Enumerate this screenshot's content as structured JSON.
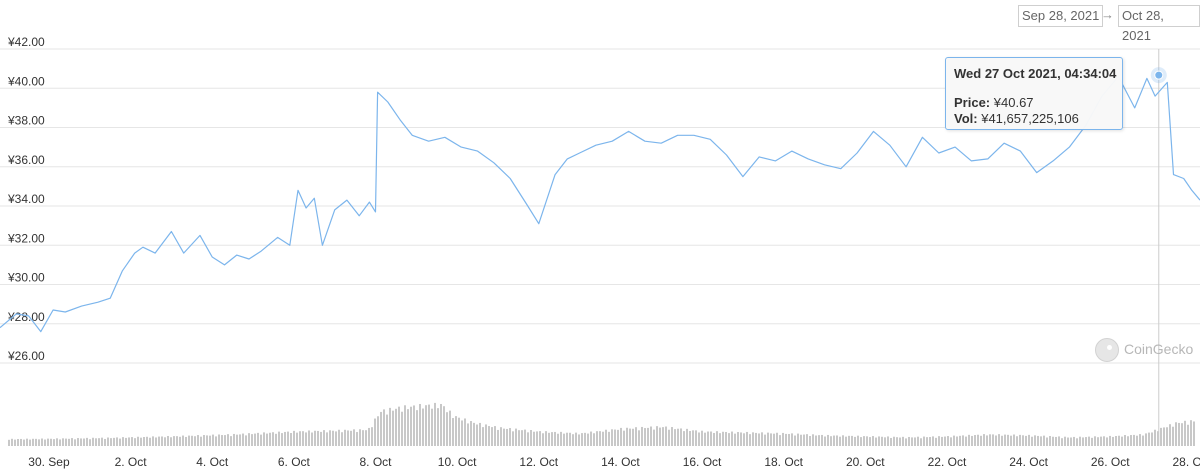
{
  "date_range": {
    "from": "Sep 28, 2021",
    "arrow": "→",
    "to": "Oct 28, 2021"
  },
  "tooltip": {
    "date": "Wed 27 Oct 2021, 04:34:04",
    "price_label": "Price:",
    "price_value": "¥40.67",
    "vol_label": "Vol:",
    "vol_value": "¥41,657,225,106"
  },
  "watermark": "CoinGecko",
  "colors": {
    "line": "#7cb5ec",
    "volume": "#c8c8c8",
    "grid": "#e6e6e6",
    "crosshair": "#cccccc",
    "text": "#333333"
  },
  "chart_data": {
    "type": "line",
    "title": "",
    "xlabel": "",
    "ylabel": "",
    "ylim": [
      26,
      42
    ],
    "xlim": [
      28.8,
      58.2
    ],
    "yticks": [
      26,
      28,
      30,
      32,
      34,
      36,
      38,
      40,
      42
    ],
    "ytick_labels": [
      "¥26.00",
      "¥28.00",
      "¥30.00",
      "¥32.00",
      "¥34.00",
      "¥36.00",
      "¥38.00",
      "¥40.00",
      "¥42.00"
    ],
    "x_unit_note": "x = day offset counted from 1 Sep 2021 (30 = 30 Sep, 32 = 2 Oct)",
    "xticks": [
      30,
      32,
      34,
      36,
      38,
      40,
      42,
      44,
      46,
      48,
      50,
      52,
      54,
      56,
      58
    ],
    "xtick_labels": [
      "30. Sep",
      "2. Oct",
      "4. Oct",
      "6. Oct",
      "8. Oct",
      "10. Oct",
      "12. Oct",
      "14. Oct",
      "16. Oct",
      "18. Oct",
      "20. Oct",
      "22. Oct",
      "24. Oct",
      "26. Oct",
      "28. Oct"
    ],
    "grid": true,
    "series": [
      {
        "name": "Price",
        "x": [
          28.8,
          29.2,
          29.5,
          29.8,
          30.1,
          30.4,
          30.8,
          31.2,
          31.5,
          31.8,
          32.1,
          32.3,
          32.6,
          33.0,
          33.3,
          33.7,
          34.0,
          34.3,
          34.6,
          34.9,
          35.2,
          35.6,
          35.9,
          36.1,
          36.3,
          36.5,
          36.7,
          37.0,
          37.3,
          37.6,
          37.85,
          38.0,
          38.05,
          38.3,
          38.6,
          38.9,
          39.3,
          39.7,
          40.1,
          40.5,
          40.9,
          41.3,
          41.7,
          42.0,
          42.4,
          42.7,
          43.0,
          43.4,
          43.8,
          44.2,
          44.6,
          45.0,
          45.4,
          45.8,
          46.2,
          46.6,
          47.0,
          47.4,
          47.8,
          48.2,
          48.6,
          49.0,
          49.4,
          49.8,
          50.2,
          50.6,
          51.0,
          51.4,
          51.8,
          52.2,
          52.6,
          53.0,
          53.4,
          53.8,
          54.2,
          54.6,
          55.0,
          55.4,
          55.8,
          56.2,
          56.6,
          56.9,
          57.1,
          57.4,
          57.55,
          57.8,
          58.0,
          58.2
        ],
        "y": [
          27.8,
          28.5,
          28.4,
          27.6,
          28.7,
          28.6,
          28.9,
          29.1,
          29.3,
          30.7,
          31.6,
          31.9,
          31.6,
          32.7,
          31.6,
          32.5,
          31.4,
          31.0,
          31.5,
          31.3,
          31.7,
          32.4,
          32.0,
          34.8,
          33.9,
          34.4,
          32.0,
          33.8,
          34.3,
          33.5,
          34.2,
          33.7,
          39.8,
          39.3,
          38.4,
          37.6,
          37.3,
          37.5,
          37.0,
          36.8,
          36.2,
          35.4,
          34.1,
          33.1,
          35.6,
          36.4,
          36.7,
          37.1,
          37.3,
          37.8,
          37.3,
          37.2,
          37.6,
          37.6,
          37.4,
          36.6,
          35.5,
          36.5,
          36.3,
          36.8,
          36.4,
          36.1,
          35.9,
          36.7,
          37.8,
          37.1,
          36.0,
          37.5,
          36.7,
          37.0,
          36.3,
          36.4,
          37.2,
          36.8,
          35.7,
          36.3,
          37.0,
          38.1,
          39.6,
          40.6,
          39.0,
          40.5,
          39.6,
          40.3,
          35.6,
          35.4,
          34.8,
          34.3
        ]
      }
    ],
    "volume_series": {
      "x": [
        28.8,
        30.0,
        31.5,
        33.0,
        34.5,
        36.0,
        37.0,
        37.8,
        38.1,
        38.6,
        39.2,
        39.6,
        39.9,
        40.4,
        41.0,
        42.0,
        43.0,
        44.0,
        45.0,
        46.0,
        47.0,
        48.0,
        49.0,
        50.0,
        51.0,
        52.0,
        53.0,
        54.0,
        55.0,
        56.0,
        56.8,
        57.2,
        57.6,
        58.2
      ],
      "values": [
        0.14,
        0.15,
        0.17,
        0.2,
        0.24,
        0.3,
        0.32,
        0.34,
        0.72,
        0.8,
        0.84,
        0.86,
        0.62,
        0.48,
        0.38,
        0.3,
        0.26,
        0.36,
        0.4,
        0.3,
        0.28,
        0.26,
        0.22,
        0.2,
        0.18,
        0.2,
        0.24,
        0.22,
        0.18,
        0.2,
        0.24,
        0.36,
        0.48,
        0.54
      ]
    },
    "annotations": [
      {
        "type": "marker",
        "x": 57.19,
        "y": 40.67
      }
    ]
  }
}
